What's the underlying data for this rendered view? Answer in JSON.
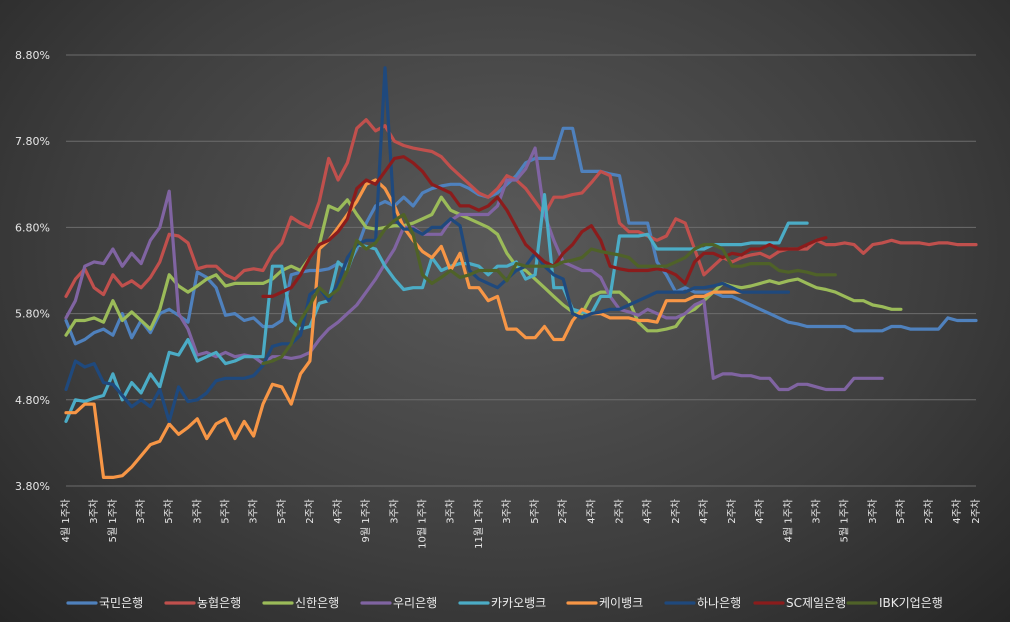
{
  "chart_data": {
    "type": "line",
    "title": "",
    "xlabel": "",
    "ylabel": "",
    "ylim": [
      3.8,
      8.8
    ],
    "yticks": [
      "3.80%",
      "4.80%",
      "5.80%",
      "6.80%",
      "7.80%",
      "8.80%"
    ],
    "grid": "horizontal",
    "legend": "bottom",
    "x_count": 98,
    "x_tick_labels": [
      {
        "i": 0,
        "text": "4월 1주차"
      },
      {
        "i": 3,
        "text": "3주차"
      },
      {
        "i": 5,
        "text": "5월 1주차"
      },
      {
        "i": 8,
        "text": "3주차"
      },
      {
        "i": 11,
        "text": "5주차"
      },
      {
        "i": 14,
        "text": "3주차"
      },
      {
        "i": 17,
        "text": "5주차"
      },
      {
        "i": 20,
        "text": "3주차"
      },
      {
        "i": 23,
        "text": "5주차"
      },
      {
        "i": 26,
        "text": "2주차"
      },
      {
        "i": 29,
        "text": "4주차"
      },
      {
        "i": 32,
        "text": "9월 1주차"
      },
      {
        "i": 35,
        "text": "3주차"
      },
      {
        "i": 38,
        "text": "10월 1주차"
      },
      {
        "i": 41,
        "text": "3주차"
      },
      {
        "i": 44,
        "text": "11월 1주차"
      },
      {
        "i": 47,
        "text": "3주차"
      },
      {
        "i": 50,
        "text": "5주차"
      },
      {
        "i": 53,
        "text": "2주차"
      },
      {
        "i": 56,
        "text": "4주차"
      },
      {
        "i": 59,
        "text": "2주차"
      },
      {
        "i": 62,
        "text": "4주차"
      },
      {
        "i": 65,
        "text": "2주차"
      },
      {
        "i": 68,
        "text": "4주차"
      },
      {
        "i": 71,
        "text": "2주차"
      },
      {
        "i": 74,
        "text": "4주차"
      },
      {
        "i": 77,
        "text": "4월 1주차"
      },
      {
        "i": 80,
        "text": "3주차"
      },
      {
        "i": 83,
        "text": "5월 1주차"
      },
      {
        "i": 86,
        "text": "3주차"
      },
      {
        "i": 89,
        "text": "5주차"
      },
      {
        "i": 92,
        "text": "2주차"
      },
      {
        "i": 95,
        "text": "4주차"
      },
      {
        "i": 97,
        "text": "2주차"
      }
    ],
    "series": [
      {
        "name": "국민은행",
        "color": "#4f81bd",
        "start": 0,
        "values": [
          5.72,
          5.45,
          5.5,
          5.58,
          5.62,
          5.55,
          5.8,
          5.52,
          5.72,
          5.58,
          5.8,
          5.85,
          5.78,
          5.7,
          6.28,
          6.22,
          6.1,
          5.78,
          5.8,
          5.72,
          5.75,
          5.65,
          5.65,
          5.72,
          6.25,
          6.28,
          6.3,
          6.3,
          6.32,
          6.38,
          6.35,
          6.55,
          6.85,
          7.05,
          7.1,
          7.05,
          7.15,
          7.05,
          7.2,
          7.25,
          7.28,
          7.3,
          7.3,
          7.25,
          7.18,
          7.15,
          7.2,
          7.3,
          7.4,
          7.55,
          7.6,
          7.6,
          7.6,
          7.95,
          7.95,
          7.45,
          7.45,
          7.45,
          7.42,
          7.4,
          6.85,
          6.85,
          6.85,
          6.4,
          6.25,
          6.05,
          6.1,
          6.05,
          6.05,
          6.05,
          6.0,
          6.0,
          5.95,
          5.9,
          5.85,
          5.8,
          5.75,
          5.7,
          5.68,
          5.65,
          5.65,
          5.65,
          5.65,
          5.65,
          5.6,
          5.6,
          5.6,
          5.6,
          5.65,
          5.65,
          5.62,
          5.62,
          5.62,
          5.62,
          5.75,
          5.72,
          5.72,
          5.72
        ]
      },
      {
        "name": "농협은행",
        "color": "#c0504d",
        "start": 0,
        "values": [
          6.0,
          6.2,
          6.32,
          6.1,
          6.02,
          6.25,
          6.12,
          6.18,
          6.1,
          6.22,
          6.4,
          6.72,
          6.7,
          6.62,
          6.32,
          6.35,
          6.35,
          6.25,
          6.2,
          6.3,
          6.32,
          6.3,
          6.5,
          6.62,
          6.92,
          6.85,
          6.8,
          7.1,
          7.6,
          7.35,
          7.55,
          7.95,
          8.05,
          7.92,
          7.98,
          7.8,
          7.75,
          7.72,
          7.7,
          7.68,
          7.62,
          7.5,
          7.4,
          7.3,
          7.2,
          7.15,
          7.25,
          7.4,
          7.35,
          7.25,
          7.1,
          6.95,
          7.15,
          7.15,
          7.18,
          7.2,
          7.32,
          7.45,
          7.4,
          6.85,
          6.75,
          6.75,
          6.7,
          6.65,
          6.7,
          6.9,
          6.85,
          6.55,
          6.25,
          6.35,
          6.45,
          6.4,
          6.45,
          6.48,
          6.5,
          6.45,
          6.52,
          6.55,
          6.55,
          6.55,
          6.65,
          6.6,
          6.6,
          6.62,
          6.6,
          6.5,
          6.6,
          6.62,
          6.65,
          6.62,
          6.62,
          6.62,
          6.6,
          6.62,
          6.62,
          6.6,
          6.6,
          6.6
        ]
      },
      {
        "name": "신한은행",
        "color": "#9bbb59",
        "start": 0,
        "values": [
          5.55,
          5.72,
          5.72,
          5.75,
          5.7,
          5.95,
          5.72,
          5.82,
          5.72,
          5.62,
          5.85,
          6.25,
          6.12,
          6.05,
          6.12,
          6.2,
          6.25,
          6.12,
          6.15,
          6.15,
          6.15,
          6.15,
          6.2,
          6.3,
          6.35,
          6.3,
          6.45,
          6.6,
          7.05,
          7.0,
          7.12,
          6.95,
          6.8,
          6.78,
          6.8,
          6.82,
          6.82,
          6.85,
          6.9,
          6.95,
          7.15,
          7.0,
          6.95,
          6.9,
          6.85,
          6.8,
          6.72,
          6.5,
          6.35,
          6.3,
          6.2,
          6.1,
          6.0,
          5.9,
          5.82,
          5.8,
          6.0,
          6.05,
          6.05,
          6.05,
          5.95,
          5.7,
          5.6,
          5.6,
          5.62,
          5.65,
          5.8,
          5.85,
          5.95,
          6.05,
          6.15,
          6.12,
          6.1,
          6.12,
          6.15,
          6.18,
          6.15,
          6.18,
          6.2,
          6.15,
          6.1,
          6.08,
          6.05,
          6.0,
          5.95,
          5.95,
          5.9,
          5.88,
          5.85,
          5.85
        ]
      },
      {
        "name": "우리은행",
        "color": "#8064a2",
        "start": 0,
        "values": [
          5.75,
          5.95,
          6.35,
          6.4,
          6.38,
          6.55,
          6.35,
          6.5,
          6.38,
          6.65,
          6.8,
          7.22,
          5.8,
          5.62,
          5.32,
          5.35,
          5.3,
          5.35,
          5.3,
          5.32,
          5.3,
          5.22,
          5.3,
          5.3,
          5.28,
          5.3,
          5.35,
          5.5,
          5.62,
          5.7,
          5.8,
          5.9,
          6.05,
          6.2,
          6.38,
          6.55,
          6.8,
          6.8,
          6.72,
          6.72,
          6.72,
          6.88,
          6.95,
          6.95,
          6.95,
          6.95,
          7.05,
          7.35,
          7.35,
          7.48,
          7.72,
          6.95,
          6.65,
          6.4,
          6.35,
          6.3,
          6.3,
          6.22,
          6.0,
          5.85,
          5.82,
          5.78,
          5.85,
          5.8,
          5.75,
          5.75,
          5.8,
          5.9,
          5.95,
          5.05,
          5.1,
          5.1,
          5.08,
          5.08,
          5.05,
          5.05,
          4.92,
          4.92,
          4.98,
          4.98,
          4.95,
          4.92,
          4.92,
          4.92,
          5.05,
          5.05,
          5.05,
          5.05
        ]
      },
      {
        "name": "카카오뱅크",
        "color": "#4bacc6",
        "start": 0,
        "values": [
          4.55,
          4.8,
          4.78,
          4.82,
          4.85,
          5.1,
          4.8,
          5.0,
          4.88,
          5.1,
          4.95,
          5.35,
          5.32,
          5.5,
          5.25,
          5.3,
          5.35,
          5.22,
          5.25,
          5.3,
          5.3,
          5.3,
          6.35,
          6.35,
          5.72,
          5.62,
          5.65,
          5.92,
          5.95,
          6.4,
          6.3,
          6.6,
          6.58,
          6.55,
          6.35,
          6.2,
          6.08,
          6.1,
          6.1,
          6.45,
          6.3,
          6.35,
          6.38,
          6.38,
          6.35,
          6.25,
          6.35,
          6.35,
          6.4,
          6.2,
          6.25,
          7.18,
          6.1,
          6.1,
          5.85,
          5.82,
          5.8,
          6.0,
          6.0,
          6.7,
          6.7,
          6.7,
          6.72,
          6.55,
          6.55,
          6.55,
          6.55,
          6.55,
          6.55,
          6.6,
          6.6,
          6.6,
          6.6,
          6.62,
          6.62,
          6.62,
          6.62,
          6.85,
          6.85,
          6.85
        ]
      },
      {
        "name": "케이뱅크",
        "color": "#f79646",
        "start": 0,
        "values": [
          4.65,
          4.65,
          4.75,
          4.75,
          3.9,
          3.9,
          3.92,
          4.02,
          4.15,
          4.28,
          4.32,
          4.52,
          4.4,
          4.48,
          4.58,
          4.35,
          4.52,
          4.58,
          4.35,
          4.55,
          4.38,
          4.75,
          4.98,
          4.95,
          4.75,
          5.1,
          5.25,
          6.55,
          6.65,
          6.8,
          6.95,
          7.1,
          7.3,
          7.35,
          7.25,
          7.05,
          6.8,
          6.65,
          6.52,
          6.45,
          6.58,
          6.3,
          6.5,
          6.1,
          6.1,
          5.95,
          6.0,
          5.62,
          5.62,
          5.52,
          5.52,
          5.65,
          5.5,
          5.5,
          5.72,
          5.85,
          5.8,
          5.8,
          5.75,
          5.75,
          5.75,
          5.72,
          5.72,
          5.7,
          5.95,
          5.95,
          5.95,
          6.0,
          6.0,
          6.05,
          6.05,
          6.05,
          6.05
        ]
      },
      {
        "name": "하나은행",
        "color": "#1f497d",
        "start": 0,
        "values": [
          4.92,
          5.25,
          5.18,
          5.22,
          5.0,
          4.98,
          4.85,
          4.72,
          4.8,
          4.72,
          4.92,
          4.55,
          4.95,
          4.78,
          4.8,
          4.88,
          5.02,
          5.05,
          5.05,
          5.05,
          5.08,
          5.2,
          5.42,
          5.45,
          5.45,
          5.55,
          6.02,
          6.1,
          5.95,
          6.15,
          6.45,
          6.6,
          6.65,
          6.65,
          8.65,
          6.9,
          6.78,
          6.78,
          6.72,
          6.8,
          6.8,
          6.9,
          6.82,
          6.3,
          6.2,
          6.15,
          6.1,
          6.2,
          6.3,
          6.35,
          6.5,
          6.35,
          6.25,
          6.2,
          5.8,
          5.75,
          5.8,
          5.82,
          5.85,
          5.85,
          5.9,
          5.95,
          6.0,
          6.05,
          6.05,
          6.05,
          6.05,
          6.1,
          6.1,
          6.12,
          6.15,
          6.1,
          6.05,
          6.05,
          6.05,
          6.05,
          6.05,
          6.05
        ]
      },
      {
        "name": "SC제일은행",
        "color": "#8b1c1c",
        "start": 21,
        "values": [
          6.0,
          6.0,
          6.05,
          6.1,
          6.25,
          6.45,
          6.6,
          6.65,
          6.75,
          6.9,
          7.25,
          7.35,
          7.3,
          7.45,
          7.6,
          7.62,
          7.55,
          7.45,
          7.3,
          7.25,
          7.2,
          7.05,
          7.05,
          7.0,
          7.05,
          7.15,
          7.0,
          6.8,
          6.6,
          6.5,
          6.4,
          6.35,
          6.5,
          6.6,
          6.75,
          6.82,
          6.65,
          6.35,
          6.32,
          6.3,
          6.3,
          6.3,
          6.32,
          6.3,
          6.25,
          6.15,
          6.4,
          6.5,
          6.5,
          6.45,
          6.5,
          6.48,
          6.55,
          6.55,
          6.6,
          6.55,
          6.55,
          6.55,
          6.6,
          6.65,
          6.68
        ]
      },
      {
        "name": "IBK기업은행",
        "color": "#4f6228",
        "start": 21,
        "values": [
          5.22,
          5.25,
          5.3,
          5.45,
          5.72,
          5.9,
          6.1,
          6.0,
          6.08,
          6.3,
          6.65,
          6.55,
          6.62,
          6.78,
          6.88,
          6.95,
          6.72,
          6.25,
          6.15,
          6.22,
          6.3,
          6.22,
          6.25,
          6.3,
          6.3,
          6.3,
          6.18,
          6.38,
          6.35,
          6.35,
          6.35,
          6.35,
          6.4,
          6.42,
          6.45,
          6.55,
          6.52,
          6.5,
          6.48,
          6.45,
          6.35,
          6.35,
          6.35,
          6.35,
          6.4,
          6.45,
          6.55,
          6.6,
          6.6,
          6.55,
          6.35,
          6.35,
          6.38,
          6.38,
          6.38,
          6.3,
          6.28,
          6.3,
          6.28,
          6.25,
          6.25,
          6.25
        ]
      }
    ]
  }
}
